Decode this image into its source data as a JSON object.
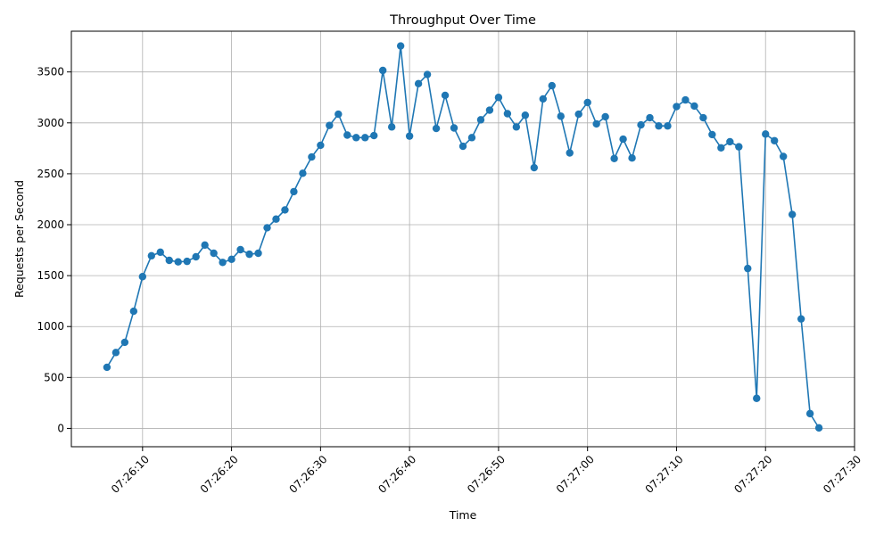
{
  "chart_data": {
    "type": "line",
    "title": "Throughput Over Time",
    "xlabel": "Time",
    "ylabel": "Requests per Second",
    "grid": true,
    "legend": "none",
    "color": "#1f77b4",
    "x_start": "07:26:06",
    "x_step_seconds": 1,
    "xlim": [
      "07:26:02",
      "07:27:30"
    ],
    "ylim": [
      -180,
      3900
    ],
    "x_ticks": [
      "07:26:10",
      "07:26:20",
      "07:26:30",
      "07:26:40",
      "07:26:50",
      "07:27:00",
      "07:27:10",
      "07:27:20",
      "07:27:30"
    ],
    "y_ticks": [
      "0",
      "500",
      "1000",
      "1500",
      "2000",
      "2500",
      "3000",
      "3500"
    ],
    "series": [
      {
        "values": [
          600,
          745,
          845,
          1150,
          1490,
          1695,
          1730,
          1650,
          1635,
          1640,
          1685,
          1800,
          1720,
          1630,
          1660,
          1755,
          1710,
          1720,
          1970,
          2055,
          2145,
          2325,
          2505,
          2665,
          2780,
          2975,
          3085,
          2880,
          2855,
          2855,
          2875,
          3515,
          2960,
          3755,
          2870,
          3385,
          3475,
          2945,
          3270,
          2950,
          2770,
          2855,
          3030,
          3125,
          3250,
          3090,
          2960,
          3075,
          2560,
          3235,
          3365,
          3065,
          2705,
          3085,
          3200,
          2990,
          3060,
          2650,
          2840,
          2655,
          2980,
          3050,
          2970,
          2970,
          3160,
          3225,
          3165,
          3050,
          2885,
          2755,
          2815,
          2765,
          1570,
          295,
          2890,
          2825,
          2670,
          2100,
          1075,
          145,
          5
        ]
      }
    ]
  }
}
